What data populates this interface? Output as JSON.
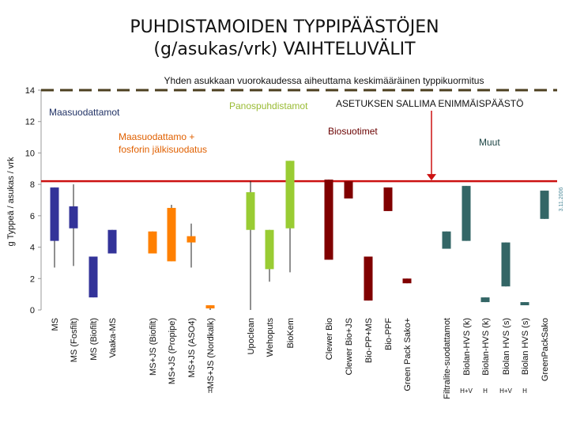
{
  "title_line1": "PUHDISTAMOIDEN TYPPIPÄÄSTÖJEN",
  "title_line2": "(g/asukas/vrk) VAIHTELUVÄLIT",
  "chart_data": {
    "type": "range-bar",
    "subtitle": "Yhden asukkaan vuorokaudessa aiheuttama keskimääräinen typpikuormitus",
    "ylabel": "g Typpeä / asukas / vrk",
    "ylim": [
      0,
      14
    ],
    "yticks": [
      0,
      2,
      4,
      6,
      8,
      10,
      12,
      14
    ],
    "reference_lines": {
      "dashed_average": 14,
      "limit": 8.2
    },
    "watermark": "Riikka Vilpas 3.11.2006",
    "groups": [
      {
        "label": "Maasuodattamot"
      },
      {
        "label": "Maasuodattamo + fosforin jälkisuodatus"
      },
      {
        "label": "Panospuhdistamot"
      },
      {
        "label": "Biosuotimet"
      },
      {
        "label": "ASETUKSEN SALLIMA ENIMMÄISPÄÄSTÖ"
      },
      {
        "label": "Muut"
      }
    ],
    "categories": [
      "MS",
      "MS (Fosfilt)",
      "MS (Biofilt)",
      "Vaaka-MS",
      "MS+JS (Biofilt)",
      "MS+JS (Propipe)",
      "MS+JS (ASO4)",
      "MS+JS (Nordkalk)",
      "Upoclean",
      "Wehoputs",
      "BioKem",
      "Clewer Bio",
      "Clewer Bio+JS",
      "Bio-PP+MS",
      "Bio-PPF",
      "Green Pack Sako+",
      "Filtralite-suodattamot",
      "Biolan-HVS (k)",
      "Biolan-HVS (k)",
      "Biolan HVS (s)",
      "Biolan HVS (s)",
      "GreenPackSako"
    ],
    "sublabels": [
      "",
      "",
      "",
      "",
      "",
      "",
      "",
      "H",
      "",
      "",
      "",
      "",
      "",
      "",
      "",
      "",
      "",
      "H+V",
      "H",
      "H+V",
      "H",
      ""
    ],
    "series": [
      {
        "values": [
          {
            "low": 2.7,
            "box_low": 4.4,
            "box_high": 7.8,
            "high": 7.8,
            "color": "#333399"
          },
          {
            "low": 2.8,
            "box_low": 5.2,
            "box_high": 6.6,
            "high": 8.0,
            "color": "#333399"
          },
          {
            "low": 0.8,
            "box_low": 0.8,
            "box_high": 3.4,
            "high": 3.4,
            "color": "#333399"
          },
          {
            "low": 3.6,
            "box_low": 3.6,
            "box_high": 5.1,
            "high": 5.1,
            "color": "#333399"
          },
          {
            "low": 3.6,
            "box_low": 3.6,
            "box_high": 5.0,
            "high": 5.0,
            "color": "#ff8000"
          },
          {
            "low": 3.1,
            "box_low": 3.1,
            "box_high": 6.5,
            "high": 6.7,
            "color": "#ff8000"
          },
          {
            "low": 2.7,
            "box_low": 4.3,
            "box_high": 4.7,
            "high": 5.5,
            "color": "#ff8000"
          },
          {
            "low": 0.0,
            "box_low": 0.1,
            "box_high": 0.3,
            "high": 0.3,
            "color": "#ff8000"
          },
          {
            "low": 0.0,
            "box_low": 5.1,
            "box_high": 7.5,
            "high": 8.2,
            "color": "#99cc33"
          },
          {
            "low": 1.8,
            "box_low": 2.6,
            "box_high": 5.1,
            "high": 5.1,
            "color": "#99cc33"
          },
          {
            "low": 2.4,
            "box_low": 5.2,
            "box_high": 9.5,
            "high": 9.5,
            "color": "#99cc33"
          },
          {
            "low": 3.2,
            "box_low": 3.2,
            "box_high": 8.3,
            "high": 8.3,
            "color": "#800000"
          },
          {
            "low": 7.1,
            "box_low": 7.1,
            "box_high": 8.2,
            "high": 8.2,
            "color": "#800000"
          },
          {
            "low": 0.6,
            "box_low": 0.6,
            "box_high": 3.4,
            "high": 3.4,
            "color": "#800000"
          },
          {
            "low": 6.3,
            "box_low": 6.3,
            "box_high": 7.8,
            "high": 7.8,
            "color": "#800000"
          },
          {
            "low": 1.7,
            "box_low": 1.7,
            "box_high": 2.0,
            "high": 2.0,
            "color": "#800000"
          },
          {
            "low": 3.9,
            "box_low": 3.9,
            "box_high": 5.0,
            "high": 5.0,
            "color": "#336666"
          },
          {
            "low": 4.4,
            "box_low": 4.4,
            "box_high": 7.9,
            "high": 7.9,
            "color": "#336666"
          },
          {
            "low": 0.5,
            "box_low": 0.5,
            "box_high": 0.8,
            "high": 0.8,
            "color": "#336666"
          },
          {
            "low": 1.5,
            "box_low": 1.5,
            "box_high": 4.3,
            "high": 4.3,
            "color": "#336666"
          },
          {
            "low": 0.3,
            "box_low": 0.3,
            "box_high": 0.5,
            "high": 0.5,
            "color": "#336666"
          },
          {
            "low": 5.8,
            "box_low": 5.8,
            "box_high": 7.6,
            "high": 7.6,
            "color": "#336666"
          }
        ]
      }
    ]
  }
}
